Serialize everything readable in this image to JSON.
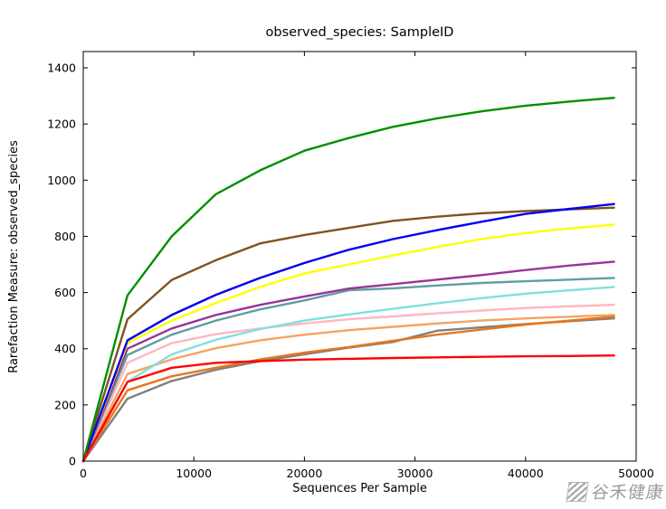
{
  "chart_data": {
    "type": "line",
    "title": "observed_species: SampleID",
    "xlabel": "Sequences Per Sample",
    "ylabel": "Rarefaction Measure: observed_species",
    "xlim": [
      0,
      50000
    ],
    "ylim": [
      0,
      1400
    ],
    "xticks": [
      0,
      10000,
      20000,
      30000,
      40000,
      50000
    ],
    "yticks": [
      0,
      200,
      400,
      600,
      800,
      1000,
      1200,
      1400
    ],
    "grid": false,
    "legend": "none",
    "x": [
      0,
      4000,
      8000,
      12000,
      16000,
      20000,
      24000,
      28000,
      32000,
      36000,
      40000,
      44000,
      48000
    ],
    "series": [
      {
        "name": "gray",
        "color": "#808080",
        "values": [
          0,
          222,
          285,
          325,
          356,
          380,
          404,
          424,
          464,
          476,
          488,
          498,
          508
        ]
      },
      {
        "name": "sandy",
        "color": "#f4a460",
        "values": [
          0,
          310,
          362,
          402,
          430,
          450,
          466,
          478,
          490,
          500,
          508,
          514,
          520
        ]
      },
      {
        "name": "orange",
        "color": "#e8761a",
        "values": [
          0,
          252,
          302,
          332,
          362,
          386,
          406,
          428,
          450,
          468,
          486,
          500,
          514
        ]
      },
      {
        "name": "pink",
        "color": "#ffb6c1",
        "values": [
          0,
          350,
          420,
          452,
          472,
          490,
          505,
          515,
          526,
          536,
          545,
          551,
          556
        ]
      },
      {
        "name": "cyan",
        "color": "#7fe0e0",
        "values": [
          0,
          282,
          380,
          432,
          470,
          500,
          522,
          542,
          562,
          580,
          596,
          608,
          620
        ]
      },
      {
        "name": "teal",
        "color": "#5f9ea0",
        "values": [
          0,
          378,
          450,
          500,
          540,
          572,
          608,
          615,
          625,
          634,
          640,
          646,
          652
        ]
      },
      {
        "name": "purple",
        "color": "#993399",
        "values": [
          0,
          400,
          472,
          520,
          556,
          586,
          614,
          630,
          646,
          662,
          680,
          696,
          710
        ]
      },
      {
        "name": "yellow",
        "color": "#ffff00",
        "values": [
          0,
          420,
          500,
          563,
          620,
          668,
          700,
          732,
          762,
          790,
          812,
          828,
          842
        ]
      },
      {
        "name": "brown",
        "color": "#80521f",
        "values": [
          0,
          505,
          645,
          715,
          775,
          805,
          830,
          855,
          870,
          882,
          890,
          896,
          902
        ]
      },
      {
        "name": "blue",
        "color": "#0000ee",
        "values": [
          0,
          430,
          520,
          592,
          652,
          705,
          752,
          790,
          822,
          852,
          880,
          898,
          915
        ]
      },
      {
        "name": "green",
        "color": "#008f00",
        "values": [
          0,
          590,
          800,
          950,
          1035,
          1105,
          1150,
          1190,
          1220,
          1245,
          1265,
          1280,
          1293
        ]
      },
      {
        "name": "red",
        "color": "#ff0000",
        "values": [
          0,
          282,
          332,
          350,
          356,
          361,
          364,
          367,
          369,
          371,
          373,
          374,
          376
        ]
      }
    ]
  },
  "watermark": {
    "text": "谷禾健康",
    "color": "#9b9b9b"
  }
}
